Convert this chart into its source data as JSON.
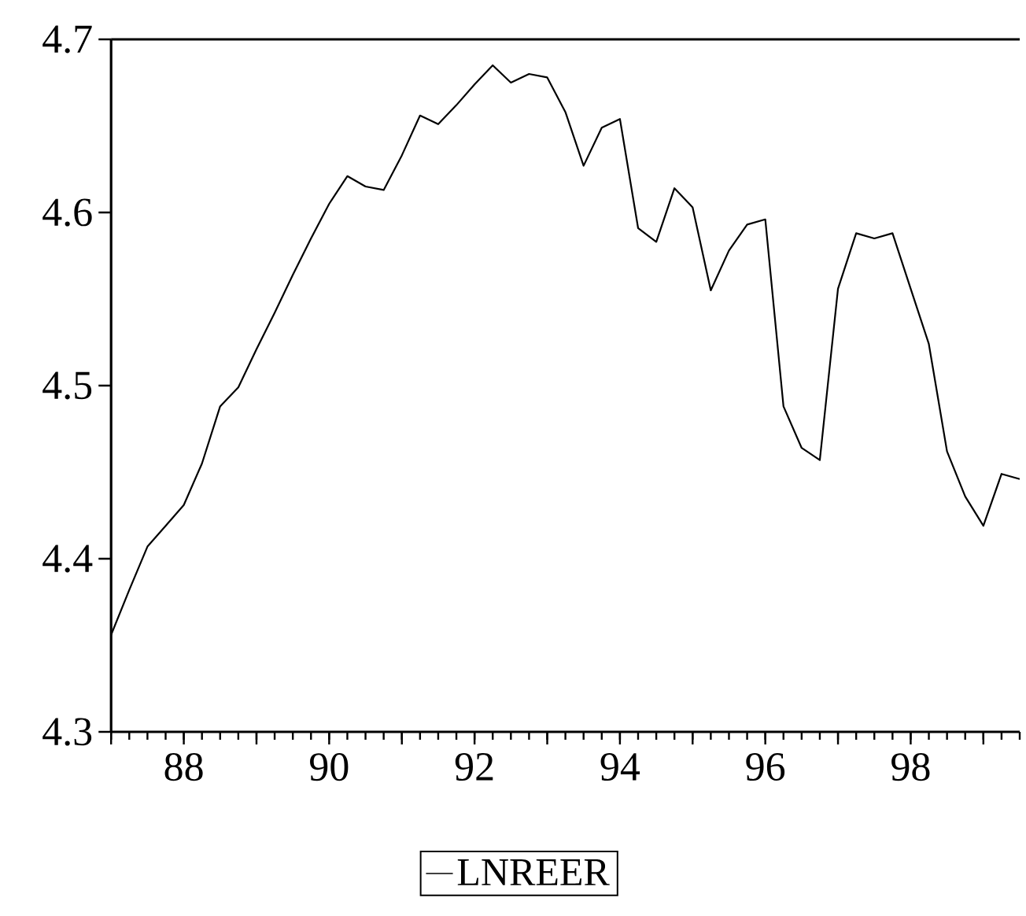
{
  "chart_data": {
    "type": "line",
    "x": [
      1987,
      1987.25,
      1987.5,
      1987.75,
      1988,
      1988.25,
      1988.5,
      1988.75,
      1989,
      1989.25,
      1989.5,
      1989.75,
      1990,
      1990.25,
      1990.5,
      1990.75,
      1991,
      1991.25,
      1991.5,
      1991.75,
      1992,
      1992.25,
      1992.5,
      1992.75,
      1993,
      1993.25,
      1993.5,
      1993.75,
      1994,
      1994.25,
      1994.5,
      1994.75,
      1995,
      1995.25,
      1995.5,
      1995.75,
      1996,
      1996.25,
      1996.5,
      1996.75,
      1997,
      1997.25,
      1997.5,
      1997.75,
      1998,
      1998.25,
      1998.5,
      1998.75,
      1999,
      1999.25,
      1999.5
    ],
    "series": [
      {
        "name": "LNREER",
        "color": "#000000",
        "values": [
          4.356,
          4.382,
          4.407,
          4.419,
          4.431,
          4.455,
          4.488,
          4.499,
          4.521,
          4.542,
          4.564,
          4.585,
          4.605,
          4.621,
          4.615,
          4.613,
          4.633,
          4.656,
          4.651,
          4.662,
          4.674,
          4.685,
          4.675,
          4.68,
          4.678,
          4.658,
          4.627,
          4.649,
          4.654,
          4.591,
          4.583,
          4.614,
          4.603,
          4.555,
          4.578,
          4.593,
          4.596,
          4.488,
          4.464,
          4.457,
          4.556,
          4.588,
          4.585,
          4.588,
          4.556,
          4.524,
          4.462,
          4.436,
          4.419,
          4.449,
          4.446
        ]
      }
    ],
    "xlim": [
      1987,
      1999.5
    ],
    "xticks": [
      {
        "value": 1987,
        "label": null
      },
      {
        "value": 1988,
        "label": "88"
      },
      {
        "value": 1989,
        "label": null
      },
      {
        "value": 1990,
        "label": "90"
      },
      {
        "value": 1991,
        "label": null
      },
      {
        "value": 1992,
        "label": "92"
      },
      {
        "value": 1993,
        "label": null
      },
      {
        "value": 1994,
        "label": "94"
      },
      {
        "value": 1995,
        "label": null
      },
      {
        "value": 1996,
        "label": "96"
      },
      {
        "value": 1997,
        "label": null
      },
      {
        "value": 1998,
        "label": "98"
      },
      {
        "value": 1999,
        "label": null
      }
    ],
    "ylim": [
      4.3,
      4.7
    ],
    "yticks": [
      4.3,
      4.4,
      4.5,
      4.6,
      4.7
    ],
    "legend": "bottom",
    "grid": false,
    "marker": "none",
    "line_style": "solid"
  }
}
